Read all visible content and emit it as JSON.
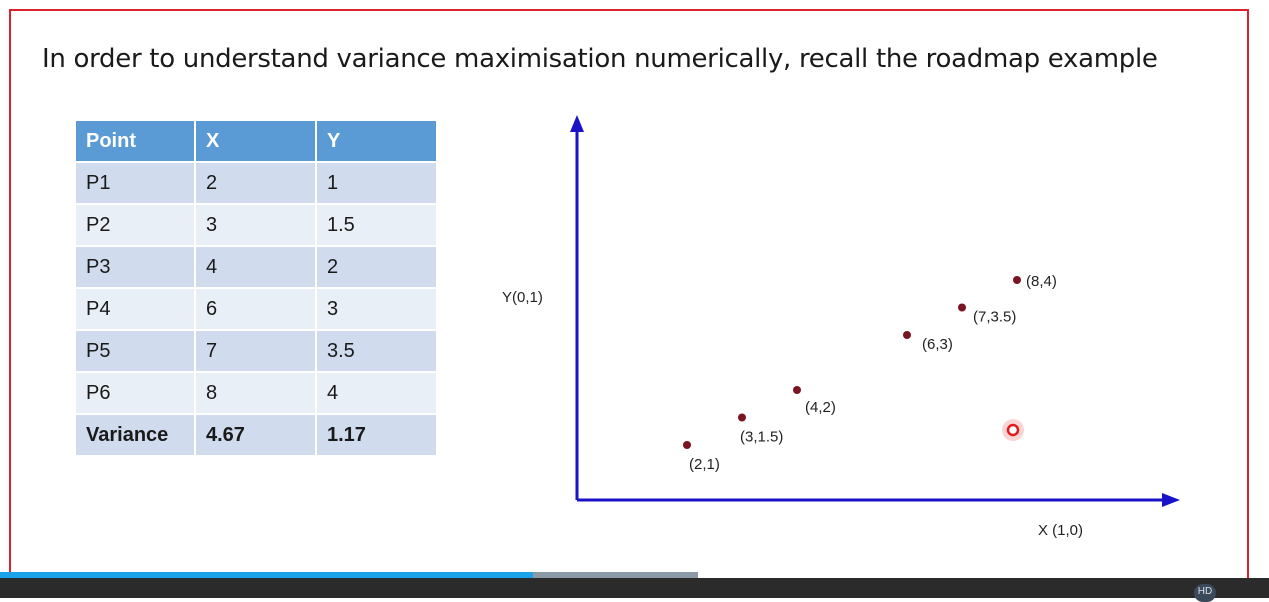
{
  "slide": {
    "title": "In order to understand variance maximisation numerically, recall the roadmap example"
  },
  "table": {
    "headers": [
      "Point",
      "X",
      "Y"
    ],
    "rows": [
      [
        "P1",
        "2",
        "1"
      ],
      [
        "P2",
        "3",
        "1.5"
      ],
      [
        "P3",
        "4",
        "2"
      ],
      [
        "P4",
        "6",
        "3"
      ],
      [
        "P5",
        "7",
        "3.5"
      ],
      [
        "P6",
        "8",
        "4"
      ]
    ],
    "variance_row": [
      "Variance",
      "4.67",
      "1.17"
    ]
  },
  "chart_data": {
    "type": "scatter",
    "title": "",
    "xlabel": "X (1,0)",
    "ylabel": "Y(0,1)",
    "x": [
      2,
      3,
      4,
      6,
      7,
      8
    ],
    "y": [
      1,
      1.5,
      2,
      3,
      3.5,
      4
    ],
    "point_labels": [
      "(2,1)",
      "(3,1.5)",
      "(4,2)",
      "(6,3)",
      "(7,3.5)",
      "(8,4)"
    ],
    "xlim": [
      0,
      10
    ],
    "ylim": [
      0,
      7
    ],
    "point_color": "#7a1420",
    "axis_color": "#1a12c8"
  },
  "player": {
    "played_fraction": 0.42,
    "buffered_fraction": 0.55,
    "hd_badge": "HD"
  },
  "colors": {
    "frame": "#d9232c",
    "header": "#5b9bd5"
  }
}
